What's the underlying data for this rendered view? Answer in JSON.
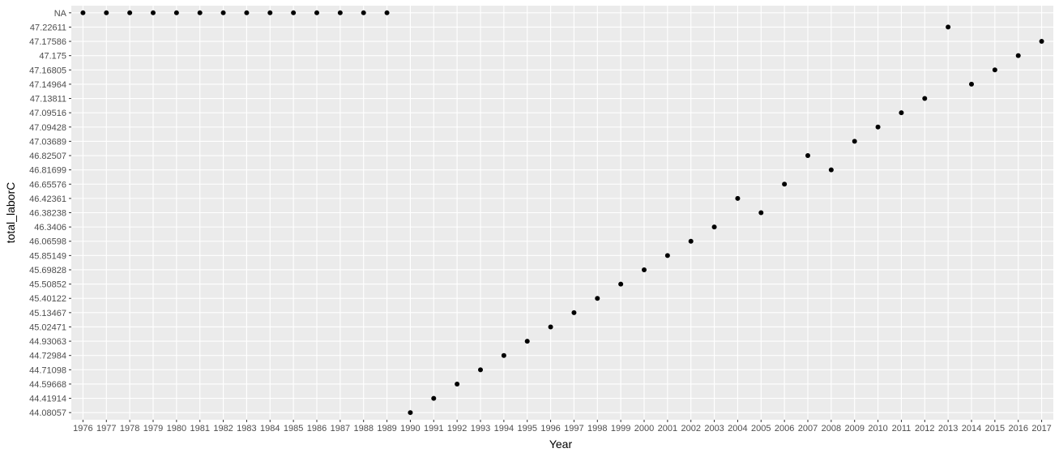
{
  "chart_data": {
    "type": "scatter",
    "xlabel": "Year",
    "ylabel": "total_laborC",
    "grid": true,
    "legend": "none",
    "x_categories": [
      "1976",
      "1977",
      "1978",
      "1979",
      "1980",
      "1981",
      "1982",
      "1983",
      "1984",
      "1985",
      "1986",
      "1987",
      "1988",
      "1989",
      "1990",
      "1991",
      "1992",
      "1993",
      "1994",
      "1995",
      "1996",
      "1997",
      "1998",
      "1999",
      "2000",
      "2001",
      "2002",
      "2003",
      "2004",
      "2005",
      "2006",
      "2007",
      "2008",
      "2009",
      "2010",
      "2011",
      "2012",
      "2013",
      "2014",
      "2015",
      "2016",
      "2017"
    ],
    "y_categories": [
      "44.08057",
      "44.41914",
      "44.59668",
      "44.71098",
      "44.72984",
      "44.93063",
      "45.02471",
      "45.13467",
      "45.40122",
      "45.50852",
      "45.69828",
      "45.85149",
      "46.06598",
      "46.3406",
      "46.38238",
      "46.42361",
      "46.65576",
      "46.81699",
      "46.82507",
      "47.03689",
      "47.09428",
      "47.09516",
      "47.13811",
      "47.14964",
      "47.16805",
      "47.175",
      "47.17586",
      "47.22611",
      "NA"
    ],
    "points": [
      {
        "x": "1976",
        "y": "NA"
      },
      {
        "x": "1977",
        "y": "NA"
      },
      {
        "x": "1978",
        "y": "NA"
      },
      {
        "x": "1979",
        "y": "NA"
      },
      {
        "x": "1980",
        "y": "NA"
      },
      {
        "x": "1981",
        "y": "NA"
      },
      {
        "x": "1982",
        "y": "NA"
      },
      {
        "x": "1983",
        "y": "NA"
      },
      {
        "x": "1984",
        "y": "NA"
      },
      {
        "x": "1985",
        "y": "NA"
      },
      {
        "x": "1986",
        "y": "NA"
      },
      {
        "x": "1987",
        "y": "NA"
      },
      {
        "x": "1988",
        "y": "NA"
      },
      {
        "x": "1989",
        "y": "NA"
      },
      {
        "x": "1990",
        "y": "44.08057"
      },
      {
        "x": "1991",
        "y": "44.41914"
      },
      {
        "x": "1992",
        "y": "44.59668"
      },
      {
        "x": "1993",
        "y": "44.71098"
      },
      {
        "x": "1994",
        "y": "44.72984"
      },
      {
        "x": "1995",
        "y": "44.93063"
      },
      {
        "x": "1996",
        "y": "45.02471"
      },
      {
        "x": "1997",
        "y": "45.13467"
      },
      {
        "x": "1998",
        "y": "45.40122"
      },
      {
        "x": "1999",
        "y": "45.50852"
      },
      {
        "x": "2000",
        "y": "45.69828"
      },
      {
        "x": "2001",
        "y": "45.85149"
      },
      {
        "x": "2002",
        "y": "46.06598"
      },
      {
        "x": "2003",
        "y": "46.3406"
      },
      {
        "x": "2004",
        "y": "46.42361"
      },
      {
        "x": "2005",
        "y": "46.38238"
      },
      {
        "x": "2006",
        "y": "46.65576"
      },
      {
        "x": "2007",
        "y": "46.82507"
      },
      {
        "x": "2008",
        "y": "46.81699"
      },
      {
        "x": "2009",
        "y": "47.03689"
      },
      {
        "x": "2010",
        "y": "47.09428"
      },
      {
        "x": "2011",
        "y": "47.09516"
      },
      {
        "x": "2012",
        "y": "47.13811"
      },
      {
        "x": "2013",
        "y": "47.22611"
      },
      {
        "x": "2014",
        "y": "47.14964"
      },
      {
        "x": "2015",
        "y": "47.16805"
      },
      {
        "x": "2016",
        "y": "47.175"
      },
      {
        "x": "2017",
        "y": "47.17586"
      }
    ],
    "colors": {
      "panel": "#ebebeb",
      "grid": "#ffffff",
      "point": "#000000",
      "tick_text": "#4d4d4d",
      "axis_title": "#000000"
    }
  }
}
